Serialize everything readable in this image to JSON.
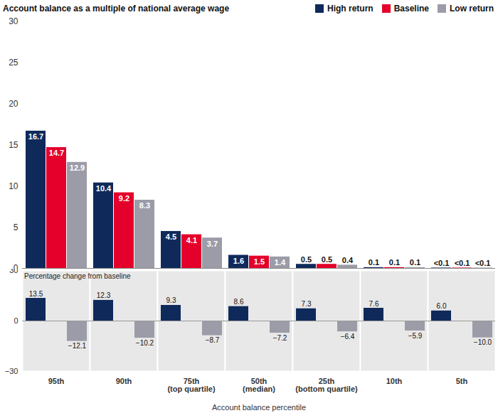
{
  "chart_data": [
    {
      "type": "bar",
      "ylabel": "Account balance as a multiple of national average wage",
      "categories": [
        "95th",
        "90th",
        "75th\n(top quartile)",
        "50th\n(median)",
        "25th\n(bottom quartile)",
        "10th",
        "5th"
      ],
      "series": [
        {
          "name": "High return",
          "color": "#0f2a5a",
          "values": [
            16.7,
            10.4,
            4.5,
            1.6,
            0.5,
            0.1,
            0.05
          ],
          "value_labels": [
            "16.7",
            "10.4",
            "4.5",
            "1.6",
            "0.5",
            "0.1",
            "<0.1"
          ]
        },
        {
          "name": "Baseline",
          "color": "#e4002b",
          "values": [
            14.7,
            9.2,
            4.1,
            1.5,
            0.5,
            0.1,
            0.05
          ],
          "value_labels": [
            "14.7",
            "9.2",
            "4.1",
            "1.5",
            "0.5",
            "0.1",
            "<0.1"
          ]
        },
        {
          "name": "Low return",
          "color": "#9c9ca8",
          "values": [
            12.9,
            8.3,
            3.7,
            1.4,
            0.4,
            0.1,
            0.05
          ],
          "value_labels": [
            "12.9",
            "8.3",
            "3.7",
            "1.4",
            "0.4",
            "0.1",
            "<0.1"
          ]
        }
      ],
      "ylim": [
        0,
        30
      ],
      "yticks": [
        0,
        5,
        10,
        15,
        20,
        25,
        30
      ],
      "grid": false,
      "legend": "top-right",
      "data_labels": true,
      "tick_labels": "y"
    },
    {
      "type": "bar",
      "title": "Percentage change from baseline",
      "xlabel": "Account balance percentile",
      "categories": [
        "95th",
        "90th",
        "75th\n(top quartile)",
        "50th\n(median)",
        "25th\n(bottom quartile)",
        "10th",
        "5th"
      ],
      "series": [
        {
          "name": "High return",
          "color": "#0f2a5a",
          "values": [
            13.5,
            12.3,
            9.3,
            8.6,
            7.3,
            7.6,
            6.0
          ],
          "value_labels": [
            "13.5",
            "12.3",
            "9.3",
            "8.6",
            "7.3",
            "7.6",
            "6.0"
          ]
        },
        {
          "name": "Low return",
          "color": "#9c9ca8",
          "values": [
            -12.1,
            -10.2,
            -8.7,
            -7.2,
            -6.4,
            -5.9,
            -10.0
          ],
          "value_labels": [
            "−12.1",
            "−10.2",
            "−8.7",
            "−7.2",
            "−6.4",
            "−5.9",
            "−10.0"
          ]
        }
      ],
      "ylim": [
        -30,
        30
      ],
      "yticks": [
        {
          "value": -30,
          "label": "−30"
        },
        0,
        {
          "value": 30,
          "label": "30"
        }
      ],
      "grid": false,
      "data_labels": true
    }
  ]
}
